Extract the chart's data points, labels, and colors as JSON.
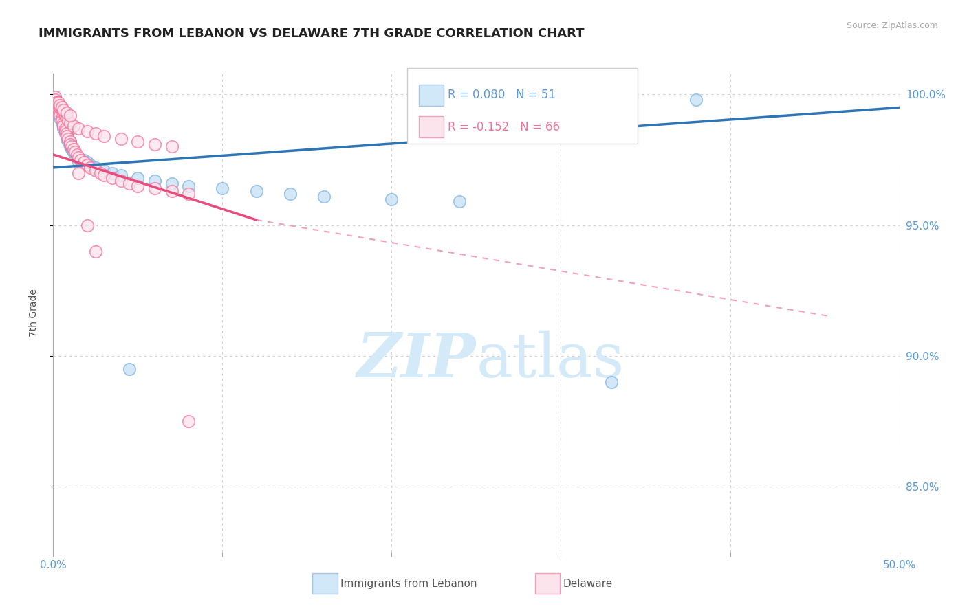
{
  "title": "IMMIGRANTS FROM LEBANON VS DELAWARE 7TH GRADE CORRELATION CHART",
  "source_text": "Source: ZipAtlas.com",
  "ylabel": "7th Grade",
  "xlim": [
    0.0,
    0.5
  ],
  "ylim": [
    0.825,
    1.008
  ],
  "ytick_positions": [
    0.85,
    0.9,
    0.95,
    1.0
  ],
  "ytick_labels": [
    "85.0%",
    "90.0%",
    "95.0%",
    "100.0%"
  ],
  "blue_scatter_x": [
    0.001,
    0.002,
    0.002,
    0.003,
    0.003,
    0.004,
    0.004,
    0.005,
    0.005,
    0.006,
    0.006,
    0.007,
    0.007,
    0.008,
    0.008,
    0.009,
    0.01,
    0.01,
    0.011,
    0.012,
    0.013,
    0.015,
    0.018,
    0.02,
    0.022,
    0.025,
    0.03,
    0.035,
    0.04,
    0.05,
    0.06,
    0.07,
    0.08,
    0.1,
    0.12,
    0.14,
    0.16,
    0.2,
    0.24,
    0.38,
    0.003,
    0.004,
    0.005,
    0.006,
    0.007,
    0.008,
    0.01,
    0.012,
    0.015,
    0.045,
    0.33
  ],
  "blue_scatter_y": [
    0.999,
    0.997,
    0.995,
    0.994,
    0.993,
    0.992,
    0.991,
    0.99,
    0.989,
    0.988,
    0.987,
    0.986,
    0.985,
    0.984,
    0.983,
    0.982,
    0.981,
    0.98,
    0.979,
    0.978,
    0.977,
    0.976,
    0.975,
    0.974,
    0.973,
    0.972,
    0.971,
    0.97,
    0.969,
    0.968,
    0.967,
    0.966,
    0.965,
    0.964,
    0.963,
    0.962,
    0.961,
    0.96,
    0.959,
    0.998,
    0.996,
    0.994,
    0.992,
    0.99,
    0.988,
    0.986,
    0.982,
    0.978,
    0.974,
    0.895,
    0.89
  ],
  "pink_scatter_x": [
    0.001,
    0.001,
    0.002,
    0.002,
    0.003,
    0.003,
    0.004,
    0.004,
    0.005,
    0.005,
    0.006,
    0.006,
    0.007,
    0.007,
    0.008,
    0.008,
    0.009,
    0.01,
    0.01,
    0.011,
    0.012,
    0.013,
    0.014,
    0.015,
    0.016,
    0.018,
    0.02,
    0.022,
    0.025,
    0.028,
    0.03,
    0.035,
    0.04,
    0.045,
    0.05,
    0.06,
    0.07,
    0.08,
    0.002,
    0.003,
    0.004,
    0.005,
    0.006,
    0.007,
    0.008,
    0.009,
    0.01,
    0.012,
    0.015,
    0.02,
    0.025,
    0.03,
    0.04,
    0.05,
    0.06,
    0.07,
    0.003,
    0.004,
    0.005,
    0.006,
    0.008,
    0.01,
    0.015,
    0.02,
    0.025,
    0.08
  ],
  "pink_scatter_y": [
    0.999,
    0.998,
    0.997,
    0.996,
    0.995,
    0.994,
    0.993,
    0.992,
    0.991,
    0.99,
    0.989,
    0.988,
    0.987,
    0.986,
    0.985,
    0.984,
    0.983,
    0.982,
    0.981,
    0.98,
    0.979,
    0.978,
    0.977,
    0.976,
    0.975,
    0.974,
    0.973,
    0.972,
    0.971,
    0.97,
    0.969,
    0.968,
    0.967,
    0.966,
    0.965,
    0.964,
    0.963,
    0.962,
    0.997,
    0.996,
    0.995,
    0.994,
    0.993,
    0.992,
    0.991,
    0.99,
    0.989,
    0.988,
    0.987,
    0.986,
    0.985,
    0.984,
    0.983,
    0.982,
    0.981,
    0.98,
    0.997,
    0.996,
    0.995,
    0.994,
    0.993,
    0.992,
    0.97,
    0.95,
    0.94,
    0.875
  ],
  "blue_line": {
    "x": [
      0.0,
      0.5
    ],
    "y": [
      0.972,
      0.995
    ]
  },
  "pink_solid_line": {
    "x": [
      0.0,
      0.12
    ],
    "y": [
      0.977,
      0.952
    ]
  },
  "pink_dash_line": {
    "x": [
      0.12,
      0.46
    ],
    "y": [
      0.952,
      0.915
    ]
  },
  "blue_color": "#7fb3e0",
  "pink_color": "#f4729a",
  "blue_fill_color": "#c5dff5",
  "pink_fill_color": "#fce4ec",
  "blue_line_color": "#2e75b6",
  "pink_line_color": "#e84c7d",
  "pink_dash_color": "#f4a0b8",
  "watermark_color": "#d5eaf8",
  "background_color": "#ffffff",
  "grid_color": "#d0d0d0",
  "legend": {
    "blue_label": "R = 0.080   N = 51",
    "pink_label": "R = -0.152   N = 66"
  }
}
